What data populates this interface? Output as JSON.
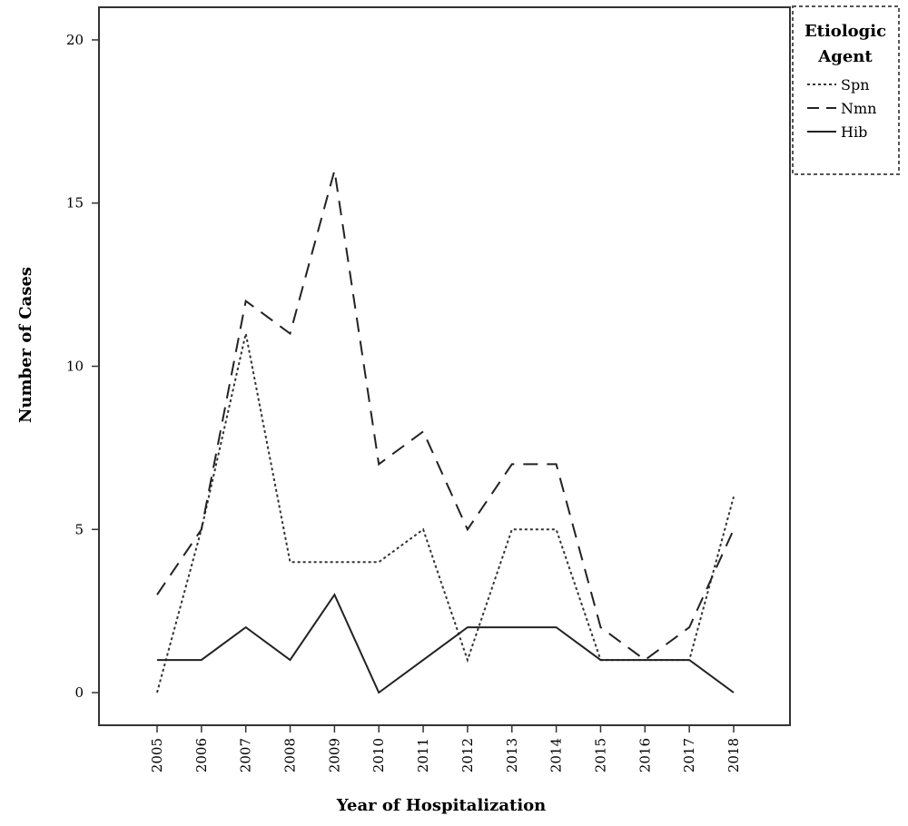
{
  "chart_data": {
    "type": "line",
    "xlabel": "Year of Hospitalization",
    "ylabel": "Number of Cases",
    "ylim": [
      -1,
      21
    ],
    "yticks": [
      0,
      5,
      10,
      15,
      20
    ],
    "x": [
      "2005",
      "2006",
      "2007",
      "2008",
      "2009",
      "2010",
      "2011",
      "2012",
      "2013",
      "2014",
      "2015",
      "2016",
      "2017",
      "2018"
    ],
    "grid": false,
    "legend": {
      "title_lines": [
        "Etiologic",
        "Agent"
      ],
      "placement": "top-right, outside plot"
    },
    "series": [
      {
        "name": "Spn",
        "style": "dotted",
        "color": "#333333",
        "values": [
          0,
          5,
          11,
          4,
          4,
          4,
          5,
          1,
          5,
          5,
          1,
          1,
          1,
          6
        ]
      },
      {
        "name": "Nmn",
        "style": "dashed",
        "color": "#222222",
        "values": [
          3,
          5,
          12,
          11,
          16,
          7,
          8,
          5,
          7,
          7,
          2,
          1,
          2,
          5
        ]
      },
      {
        "name": "Hib",
        "style": "solid",
        "color": "#222222",
        "values": [
          1,
          1,
          2,
          1,
          3,
          0,
          1,
          2,
          2,
          2,
          1,
          1,
          1,
          0
        ]
      }
    ]
  }
}
